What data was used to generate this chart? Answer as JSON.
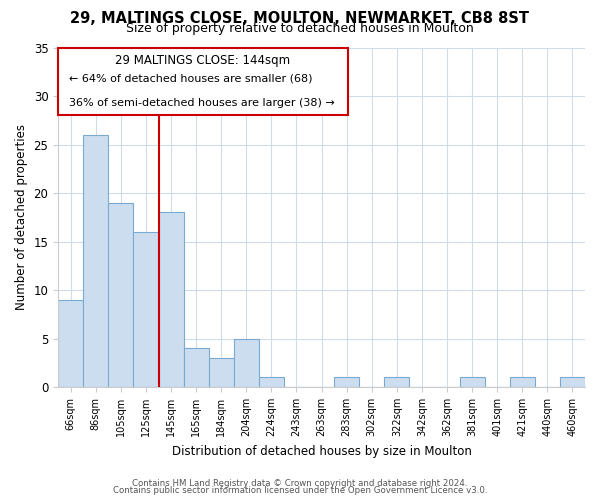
{
  "title1": "29, MALTINGS CLOSE, MOULTON, NEWMARKET, CB8 8ST",
  "title2": "Size of property relative to detached houses in Moulton",
  "xlabel": "Distribution of detached houses by size in Moulton",
  "ylabel": "Number of detached properties",
  "bin_labels": [
    "66sqm",
    "86sqm",
    "105sqm",
    "125sqm",
    "145sqm",
    "165sqm",
    "184sqm",
    "204sqm",
    "224sqm",
    "243sqm",
    "263sqm",
    "283sqm",
    "302sqm",
    "322sqm",
    "342sqm",
    "362sqm",
    "381sqm",
    "401sqm",
    "421sqm",
    "440sqm",
    "460sqm"
  ],
  "bar_heights": [
    9,
    26,
    19,
    16,
    18,
    4,
    3,
    5,
    1,
    0,
    0,
    1,
    0,
    1,
    0,
    0,
    1,
    0,
    1,
    0,
    1
  ],
  "bar_color": "#ccddf0",
  "bar_edge_color": "#7aaad0",
  "vline_index": 4,
  "vline_color": "#cc0000",
  "ylim": [
    0,
    35
  ],
  "yticks": [
    0,
    5,
    10,
    15,
    20,
    25,
    30,
    35
  ],
  "annotation_title": "29 MALTINGS CLOSE: 144sqm",
  "annotation_line1": "← 64% of detached houses are smaller (68)",
  "annotation_line2": "36% of semi-detached houses are larger (38) →",
  "footer1": "Contains HM Land Registry data © Crown copyright and database right 2024.",
  "footer2": "Contains public sector information licensed under the Open Government Licence v3.0.",
  "background_color": "#ffffff",
  "grid_color": "#d0dcea"
}
